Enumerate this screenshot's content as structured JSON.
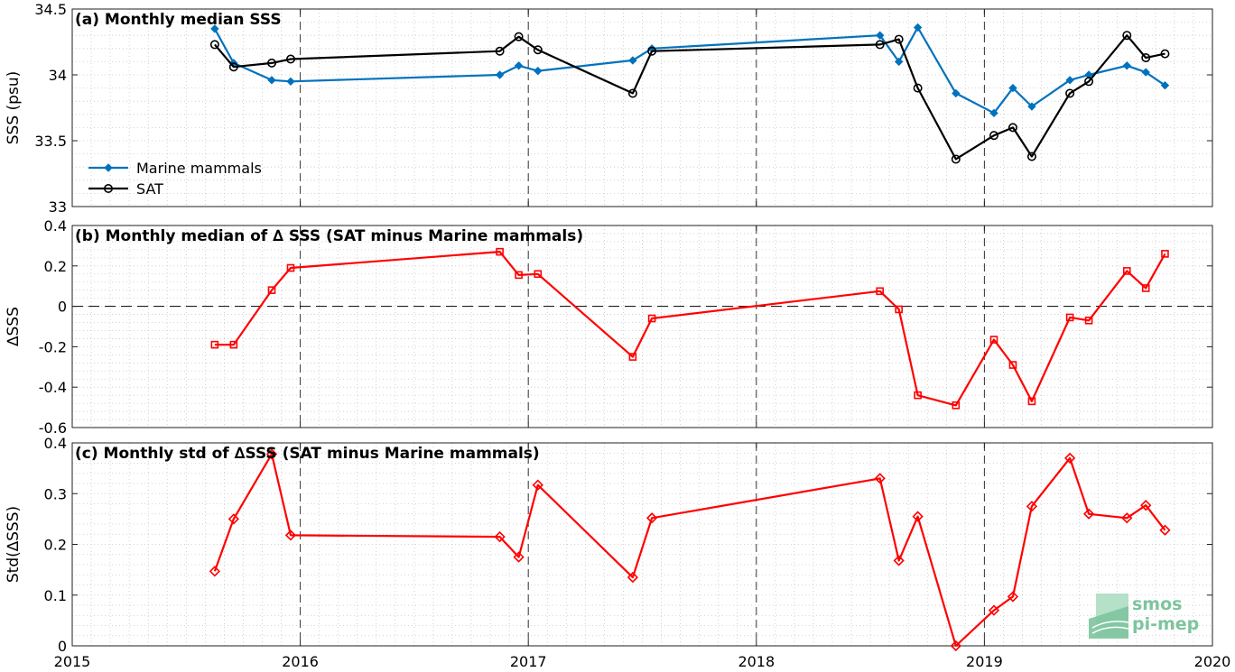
{
  "chart_data": [
    {
      "type": "line",
      "title": "(a) Monthly median SSS",
      "ylabel": "SSS (psu)",
      "xlim": [
        2015,
        2020
      ],
      "ylim": [
        33,
        34.5
      ],
      "yticks": [
        33,
        33.5,
        34,
        34.5
      ],
      "ytick_labels": [
        "33",
        "33.5",
        "34",
        "34.5"
      ],
      "grid": true,
      "legend_position": "lower-left",
      "series": [
        {
          "name": "Marine mammals",
          "color": "#0072bd",
          "marker": "diamond-filled",
          "x": [
            2015.625,
            2015.708,
            2015.875,
            2015.958,
            2016.875,
            2016.958,
            2017.042,
            2017.458,
            2017.542,
            2018.542,
            2018.625,
            2018.708,
            2018.875,
            2019.042,
            2019.125,
            2019.208,
            2019.375,
            2019.458,
            2019.625,
            2019.708,
            2019.792
          ],
          "y": [
            34.35,
            34.09,
            33.96,
            33.95,
            34.0,
            34.07,
            34.03,
            34.11,
            34.2,
            34.3,
            34.1,
            34.36,
            33.86,
            33.71,
            33.9,
            33.76,
            33.96,
            34.0,
            34.07,
            34.02,
            33.92
          ]
        },
        {
          "name": "SAT",
          "color": "#000000",
          "marker": "circle-open",
          "x": [
            2015.625,
            2015.708,
            2015.875,
            2015.958,
            2016.875,
            2016.958,
            2017.042,
            2017.458,
            2017.542,
            2018.542,
            2018.625,
            2018.708,
            2018.875,
            2019.042,
            2019.125,
            2019.208,
            2019.375,
            2019.458,
            2019.625,
            2019.708,
            2019.792
          ],
          "y": [
            34.23,
            34.06,
            34.09,
            34.12,
            34.18,
            34.29,
            34.19,
            33.86,
            34.18,
            34.23,
            34.27,
            33.9,
            33.36,
            33.54,
            33.6,
            33.38,
            33.86,
            33.95,
            34.3,
            34.13,
            34.16
          ]
        }
      ]
    },
    {
      "type": "line",
      "title": "(b) Monthly median of ∆ SSS (SAT minus Marine mammals)",
      "ylabel": "∆SSS",
      "xlim": [
        2015,
        2020
      ],
      "ylim": [
        -0.6,
        0.4
      ],
      "yticks": [
        -0.6,
        -0.4,
        -0.2,
        0,
        0.2,
        0.4
      ],
      "ytick_labels": [
        "-0.6",
        "-0.4",
        "-0.2",
        "0",
        "0.2",
        "0.4"
      ],
      "grid": true,
      "zero_line": "dashed",
      "series": [
        {
          "color": "#ff0000",
          "marker": "square-open",
          "x": [
            2015.625,
            2015.708,
            2015.875,
            2015.958,
            2016.875,
            2016.958,
            2017.042,
            2017.458,
            2017.542,
            2018.542,
            2018.625,
            2018.708,
            2018.875,
            2019.042,
            2019.125,
            2019.208,
            2019.375,
            2019.458,
            2019.625,
            2019.708,
            2019.792
          ],
          "y": [
            -0.19,
            -0.19,
            0.08,
            0.19,
            0.27,
            0.155,
            0.16,
            -0.25,
            -0.06,
            0.075,
            -0.015,
            -0.44,
            -0.49,
            -0.165,
            -0.29,
            -0.47,
            -0.055,
            -0.07,
            0.175,
            0.09,
            0.26
          ]
        }
      ]
    },
    {
      "type": "line",
      "title": "(c) Monthly std of ∆SSS (SAT minus Marine mammals)",
      "ylabel": "Std(∆SSS)",
      "xlim": [
        2015,
        2020
      ],
      "ylim": [
        0,
        0.4
      ],
      "yticks": [
        0,
        0.1,
        0.2,
        0.3,
        0.4
      ],
      "ytick_labels": [
        "0",
        "0.1",
        "0.2",
        "0.3",
        "0.4"
      ],
      "xticks": [
        2015,
        2016,
        2017,
        2018,
        2019,
        2020
      ],
      "xtick_labels": [
        "2015",
        "2016",
        "2017",
        "2018",
        "2019",
        "2020"
      ],
      "grid": true,
      "series": [
        {
          "color": "#ff0000",
          "marker": "diamond-open",
          "x": [
            2015.625,
            2015.708,
            2015.875,
            2015.958,
            2016.875,
            2016.958,
            2017.042,
            2017.458,
            2017.542,
            2018.542,
            2018.625,
            2018.708,
            2018.875,
            2019.042,
            2019.125,
            2019.208,
            2019.375,
            2019.458,
            2019.625,
            2019.708,
            2019.792
          ],
          "y": [
            0.147,
            0.25,
            0.378,
            0.218,
            0.215,
            0.175,
            0.317,
            0.135,
            0.252,
            0.33,
            0.168,
            0.255,
            0.0,
            0.07,
            0.097,
            0.275,
            0.37,
            0.26,
            0.252,
            0.277,
            0.228
          ]
        }
      ]
    }
  ],
  "logo": {
    "line1": "smos",
    "line2": "pi-mep",
    "color": "#7dc49e"
  }
}
